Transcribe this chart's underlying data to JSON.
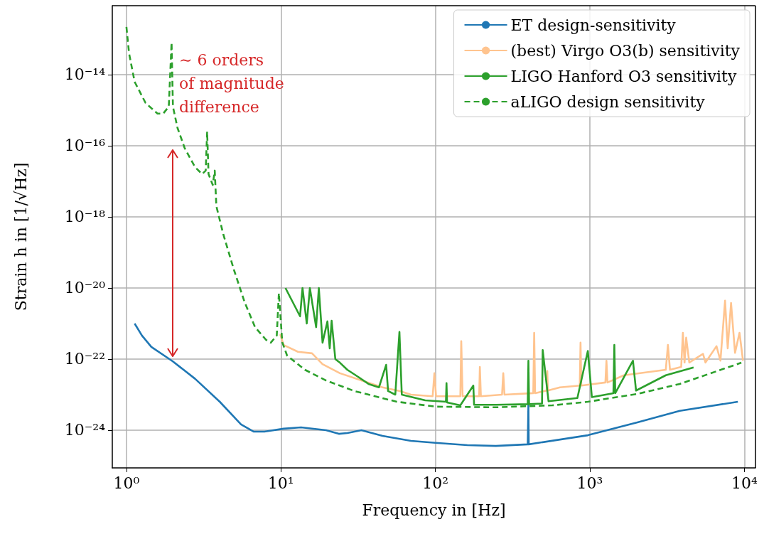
{
  "chart_data": {
    "type": "line",
    "xlabel": "Frequency in [Hz]",
    "ylabel": "Strain h in [1/√Hz]",
    "log": "xy",
    "grid": true,
    "legend": "top right",
    "marker": "none",
    "line_style": "solid",
    "xlim": [
      0.81,
      11800
    ],
    "ylim": [
      8.7e-26,
      8.7e-13
    ],
    "xticks": [
      {
        "value": 1,
        "label": "10⁰"
      },
      {
        "value": 10,
        "label": "10¹"
      },
      {
        "value": 100,
        "label": "10²"
      },
      {
        "value": 1000,
        "label": "10³"
      },
      {
        "value": 10000,
        "label": "10⁴"
      }
    ],
    "yticks": [
      {
        "value": 1e-24,
        "label": "10⁻²⁴"
      },
      {
        "value": 1e-22,
        "label": "10⁻²²"
      },
      {
        "value": 1e-20,
        "label": "10⁻²⁰"
      },
      {
        "value": 1e-18,
        "label": "10⁻¹⁸"
      },
      {
        "value": 1e-16,
        "label": "10⁻¹⁶"
      },
      {
        "value": 1e-14,
        "label": "10⁻¹⁴"
      }
    ],
    "annotations": [
      "∼ 6 orders\nof magnitude\ndifference"
    ],
    "series": [
      {
        "name": "ET design-sensitivity",
        "color": "#1f77b4",
        "x": [
          1.13,
          1.26,
          1.45,
          1.99,
          2.78,
          4.02,
          5.52,
          6.68,
          7.82,
          10.4,
          13.5,
          19.6,
          23.7,
          26.9,
          33.2,
          45.5,
          69.5,
          100,
          161,
          246,
          396,
          400,
          402,
          970,
          2030,
          3820,
          9080
        ],
        "values": [
          1e-21,
          4.6e-22,
          2.2e-22,
          8.7e-23,
          2.8e-23,
          6.3e-24,
          1.45e-24,
          9.1e-25,
          9.1e-25,
          1.1e-24,
          1.2e-24,
          1e-24,
          7.9e-25,
          8.3e-25,
          1e-24,
          6.9e-25,
          5e-25,
          4.4e-25,
          3.8e-25,
          3.6e-25,
          4e-25,
          5.5e-24,
          4e-25,
          7.2e-25,
          1.66e-24,
          3.5e-24,
          6.3e-24
        ]
      },
      {
        "name": "(best) Virgo O3(b) sensitivity",
        "color": "#ffc48f",
        "x": [
          9.9,
          10.4,
          12.9,
          15.9,
          18.6,
          24.1,
          33.2,
          45.5,
          59,
          69.5,
          96,
          98.5,
          101,
          145,
          147,
          150,
          192,
          194,
          197,
          270,
          275,
          280,
          430,
          436,
          442,
          525,
          530,
          535,
          640,
          860,
          870,
          880,
          1260,
          1280,
          1300,
          1660,
          3100,
          3200,
          3300,
          3900,
          4000,
          4100,
          4200,
          4400,
          5400,
          5600,
          6600,
          7000,
          7500,
          7800,
          8200,
          8700,
          9300,
          9800
        ],
        "values": [
          5e-22,
          2.5e-22,
          1.6e-22,
          1.45e-22,
          7.2e-23,
          4e-23,
          2.5e-23,
          1.6e-23,
          1.26e-23,
          1e-23,
          9e-24,
          4e-23,
          9e-24,
          9e-24,
          3.2e-22,
          9e-24,
          9e-24,
          6e-23,
          9e-24,
          1e-23,
          4e-23,
          1e-23,
          1.1e-23,
          5.5e-22,
          1.1e-23,
          1.3e-23,
          4.6e-23,
          1.3e-23,
          1.6e-23,
          1.8e-23,
          2.9e-22,
          1.8e-23,
          2.2e-23,
          9e-23,
          2.2e-23,
          3.5e-23,
          5e-23,
          2.5e-22,
          5e-23,
          6e-23,
          5.5e-22,
          8e-23,
          4e-22,
          8e-23,
          1.4e-22,
          8e-23,
          2.3e-22,
          9e-23,
          4.4e-21,
          2e-22,
          3.8e-21,
          1.5e-22,
          5.5e-22,
          9e-23
        ]
      },
      {
        "name": "LIGO Hanford O3 sensitivity",
        "color": "#2ca02c",
        "x": [
          10.7,
          13.3,
          13.8,
          14.7,
          15.4,
          16.9,
          17.6,
          18.6,
          20,
          20.7,
          21.3,
          22.5,
          24.1,
          26.9,
          31.5,
          36.9,
          43.1,
          48,
          49.4,
          55,
          58.5,
          60.6,
          85.9,
          117,
          118,
          119,
          145,
          176,
          178,
          246,
          396,
          400,
          404,
          490,
          495,
          540,
          830,
          970,
          1030,
          1420,
          1440,
          1460,
          1900,
          1990,
          3100,
          4690
        ],
        "values": [
          1e-20,
          1.6e-21,
          1e-20,
          1e-21,
          1e-20,
          7.9e-22,
          1e-20,
          2.9e-22,
          1.15e-21,
          2e-22,
          1.2e-21,
          1e-22,
          7.9e-23,
          5e-23,
          3.2e-23,
          2e-23,
          1.6e-23,
          6.9e-23,
          1.26e-23,
          1e-23,
          5.8e-22,
          1e-23,
          6.9e-24,
          6.3e-24,
          2.1e-23,
          6e-24,
          5e-24,
          1.8e-23,
          5.2e-24,
          5.2e-24,
          5.4e-24,
          9e-23,
          5.4e-24,
          5.6e-24,
          1.8e-22,
          6.5e-24,
          8e-24,
          1.7e-22,
          8.5e-24,
          1.1e-23,
          2.5e-22,
          1.1e-23,
          9e-23,
          1.3e-23,
          3.5e-23,
          5.8e-23
        ]
      },
      {
        "name": "aLIGO design sensitivity",
        "color": "#2ca02c",
        "line_style": "dashed",
        "x": [
          1,
          1.04,
          1.13,
          1.33,
          1.59,
          1.73,
          1.88,
          1.96,
          2,
          2.14,
          2.38,
          2.78,
          3.09,
          3.26,
          3.33,
          3.4,
          3.62,
          3.73,
          3.82,
          4.24,
          4.97,
          5.82,
          6.8,
          8,
          8.6,
          9.4,
          9.7,
          10.2,
          10.96,
          14.3,
          19.6,
          29.9,
          56.3,
          100,
          246,
          572,
          970,
          2030,
          3820,
          9560
        ],
        "values": [
          2.2e-13,
          4e-14,
          6.3e-15,
          1.6e-15,
          8e-16,
          8e-16,
          1.26e-15,
          8e-14,
          1.26e-15,
          3.2e-16,
          8.7e-17,
          2.5e-17,
          1.6e-17,
          2e-17,
          2.5e-16,
          1.6e-17,
          7.9e-18,
          2e-17,
          2e-18,
          3.2e-19,
          3.2e-20,
          4e-21,
          7.9e-22,
          3.5e-22,
          2.9e-22,
          4.6e-22,
          7.2e-21,
          3e-22,
          1.26e-22,
          5e-23,
          2.5e-23,
          1.26e-23,
          6.3e-24,
          4.6e-24,
          4.4e-24,
          5e-24,
          6.3e-24,
          1.05e-23,
          2e-23,
          7.9e-23
        ]
      }
    ]
  }
}
